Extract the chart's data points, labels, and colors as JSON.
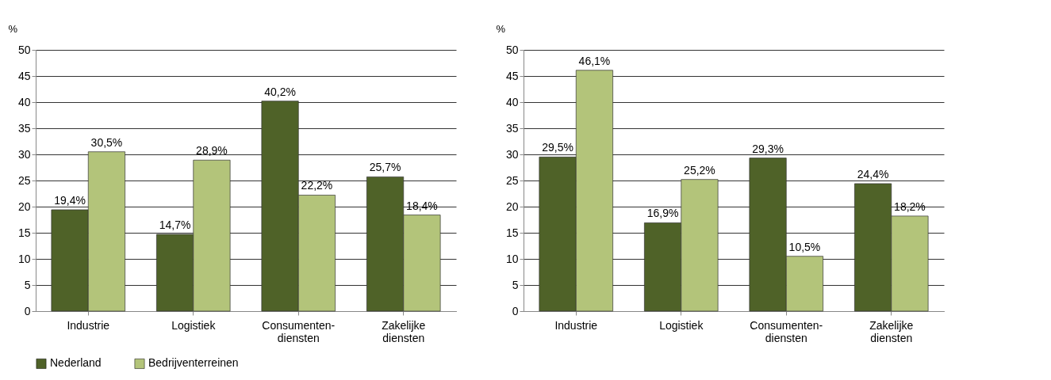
{
  "chart_data": [
    {
      "type": "bar",
      "ylabel": "%",
      "categories": [
        "Industrie",
        "Logistiek",
        "Consumenten-\ndiensten",
        "Zakelijke\ndiensten"
      ],
      "series": [
        {
          "name": "Nederland",
          "color": "#4f6228",
          "values": [
            19.4,
            14.7,
            40.2,
            25.7
          ],
          "value_labels": [
            "19,4%",
            "14,7%",
            "40,2%",
            "25,7%"
          ]
        },
        {
          "name": "Bedrijventerreinen",
          "color": "#b3c47a",
          "values": [
            30.5,
            28.9,
            22.2,
            18.4
          ],
          "value_labels": [
            "30,5%",
            "28,9%",
            "22,2%",
            "18,4%"
          ]
        }
      ],
      "ylim": [
        0,
        50
      ],
      "yticks": [
        0,
        5,
        10,
        15,
        20,
        25,
        30,
        35,
        40,
        45,
        50
      ],
      "grid": "y",
      "legend": "bottom"
    },
    {
      "type": "bar",
      "ylabel": "%",
      "categories": [
        "Industrie",
        "Logistiek",
        "Consumenten-\ndiensten",
        "Zakelijke\ndiensten"
      ],
      "series": [
        {
          "name": "Nederland",
          "color": "#4f6228",
          "values": [
            29.5,
            16.9,
            29.3,
            24.4
          ],
          "value_labels": [
            "29,5%",
            "16,9%",
            "29,3%",
            "24,4%"
          ]
        },
        {
          "name": "Bedrijventerreinen",
          "color": "#b3c47a",
          "values": [
            46.1,
            25.2,
            10.5,
            18.2
          ],
          "value_labels": [
            "46,1%",
            "25,2%",
            "10,5%",
            "18,2%"
          ]
        }
      ],
      "ylim": [
        0,
        50
      ],
      "yticks": [
        0,
        5,
        10,
        15,
        20,
        25,
        30,
        35,
        40,
        45,
        50
      ],
      "grid": "y",
      "legend": "bottom"
    }
  ]
}
